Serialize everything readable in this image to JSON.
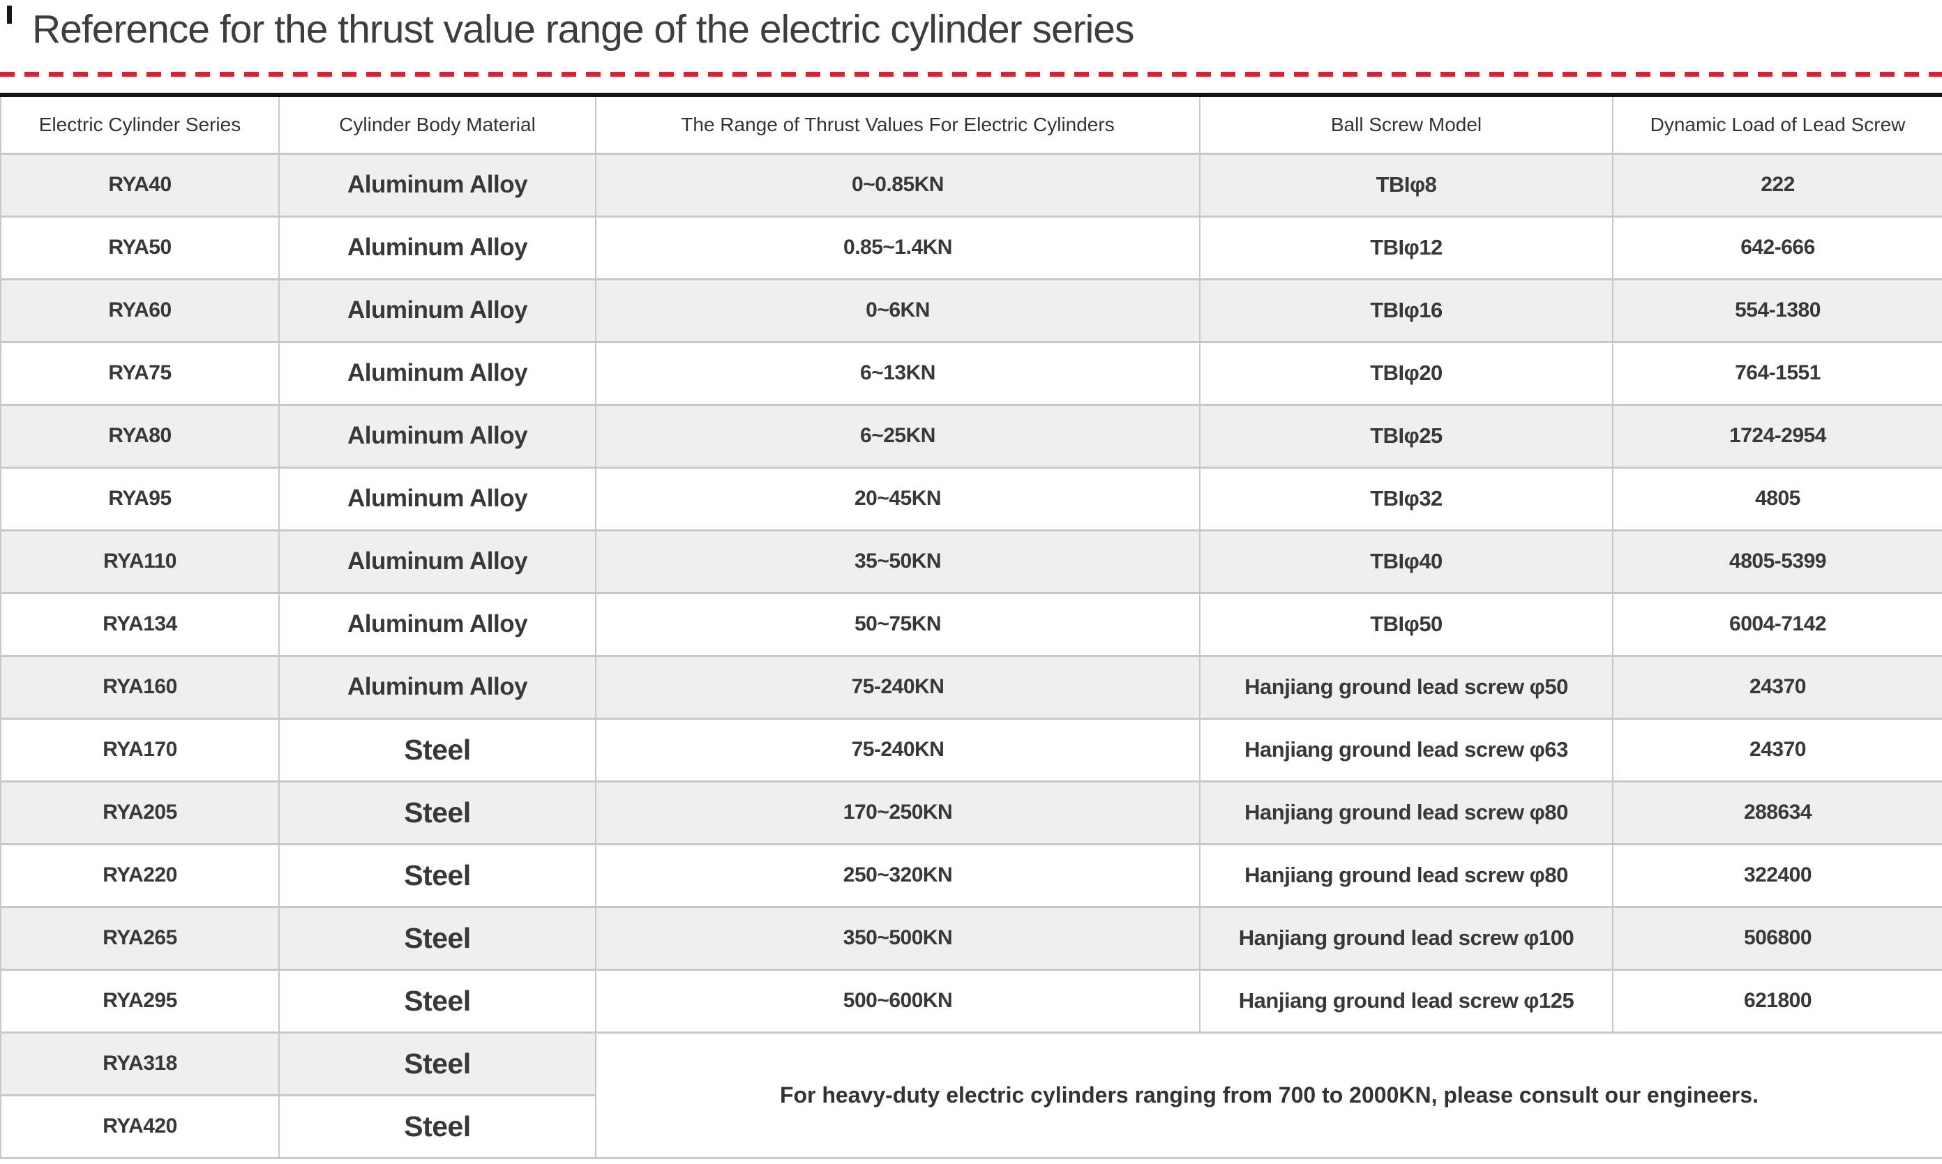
{
  "page": {
    "title": "Reference for the thrust value range of the electric cylinder series"
  },
  "colors": {
    "accent_red": "#e41e31",
    "row_alt_gray": "#efefef",
    "grid_border": "#c8c8c8",
    "table_top_border": "#141414",
    "text": "#383838"
  },
  "table": {
    "columns": [
      "Electric Cylinder Series",
      "Cylinder Body Material",
      "The Range of Thrust Values For Electric Cylinders",
      "Ball Screw Model",
      "Dynamic Load of Lead Screw"
    ],
    "rows": [
      {
        "series": "RYA40",
        "material": "Aluminum Alloy",
        "thrust": "0~0.85KN",
        "screw": "TBIφ8",
        "load": "222"
      },
      {
        "series": "RYA50",
        "material": "Aluminum Alloy",
        "thrust": "0.85~1.4KN",
        "screw": "TBIφ12",
        "load": "642-666"
      },
      {
        "series": "RYA60",
        "material": "Aluminum Alloy",
        "thrust": "0~6KN",
        "screw": "TBIφ16",
        "load": "554-1380"
      },
      {
        "series": "RYA75",
        "material": "Aluminum Alloy",
        "thrust": "6~13KN",
        "screw": "TBIφ20",
        "load": "764-1551"
      },
      {
        "series": "RYA80",
        "material": "Aluminum Alloy",
        "thrust": "6~25KN",
        "screw": "TBIφ25",
        "load": "1724-2954"
      },
      {
        "series": "RYA95",
        "material": "Aluminum Alloy",
        "thrust": "20~45KN",
        "screw": "TBIφ32",
        "load": "4805"
      },
      {
        "series": "RYA110",
        "material": "Aluminum Alloy",
        "thrust": "35~50KN",
        "screw": "TBIφ40",
        "load": "4805-5399"
      },
      {
        "series": "RYA134",
        "material": "Aluminum Alloy",
        "thrust": "50~75KN",
        "screw": "TBIφ50",
        "load": "6004-7142"
      },
      {
        "series": "RYA160",
        "material": "Aluminum Alloy",
        "thrust": "75-240KN",
        "screw": "Hanjiang ground lead screw φ50",
        "load": "24370"
      },
      {
        "series": "RYA170",
        "material": "Steel",
        "thrust": "75-240KN",
        "screw": "Hanjiang ground lead screw φ63",
        "load": "24370"
      },
      {
        "series": "RYA205",
        "material": "Steel",
        "thrust": "170~250KN",
        "screw": "Hanjiang ground lead screw φ80",
        "load": "288634"
      },
      {
        "series": "RYA220",
        "material": "Steel",
        "thrust": "250~320KN",
        "screw": "Hanjiang ground lead screw φ80",
        "load": "322400"
      },
      {
        "series": "RYA265",
        "material": "Steel",
        "thrust": "350~500KN",
        "screw": "Hanjiang ground lead screw φ100",
        "load": "506800"
      },
      {
        "series": "RYA295",
        "material": "Steel",
        "thrust": "500~600KN",
        "screw": "Hanjiang ground lead screw φ125",
        "load": "621800"
      },
      {
        "series": "RYA318",
        "material": "Steel"
      },
      {
        "series": "RYA420",
        "material": "Steel"
      }
    ],
    "note": "For heavy-duty electric cylinders ranging from 700 to 2000KN, please consult our engineers."
  }
}
